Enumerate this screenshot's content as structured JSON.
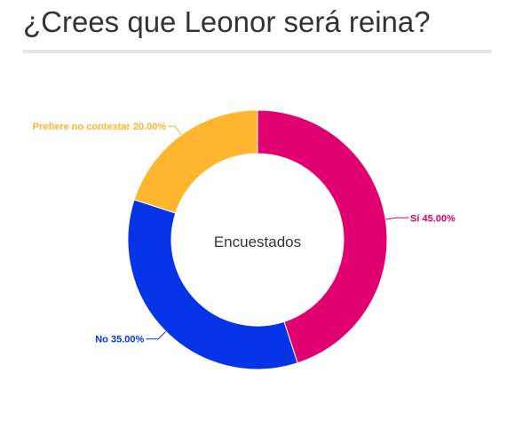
{
  "page": {
    "title": "¿Crees que Leonor será reina?"
  },
  "chart_data": {
    "type": "pie",
    "donut": true,
    "center_label": "Encuestados",
    "categories": [
      "Sí",
      "No",
      "Prefiere no contestar"
    ],
    "values": [
      45.0,
      35.0,
      20.0
    ],
    "labels": [
      "Sí 45.00%",
      "No 35.00%",
      "Prefiere no contestar 20.00%"
    ],
    "colors": [
      "#e0006f",
      "#0533e6",
      "#ffb52e"
    ],
    "legend": "none"
  }
}
